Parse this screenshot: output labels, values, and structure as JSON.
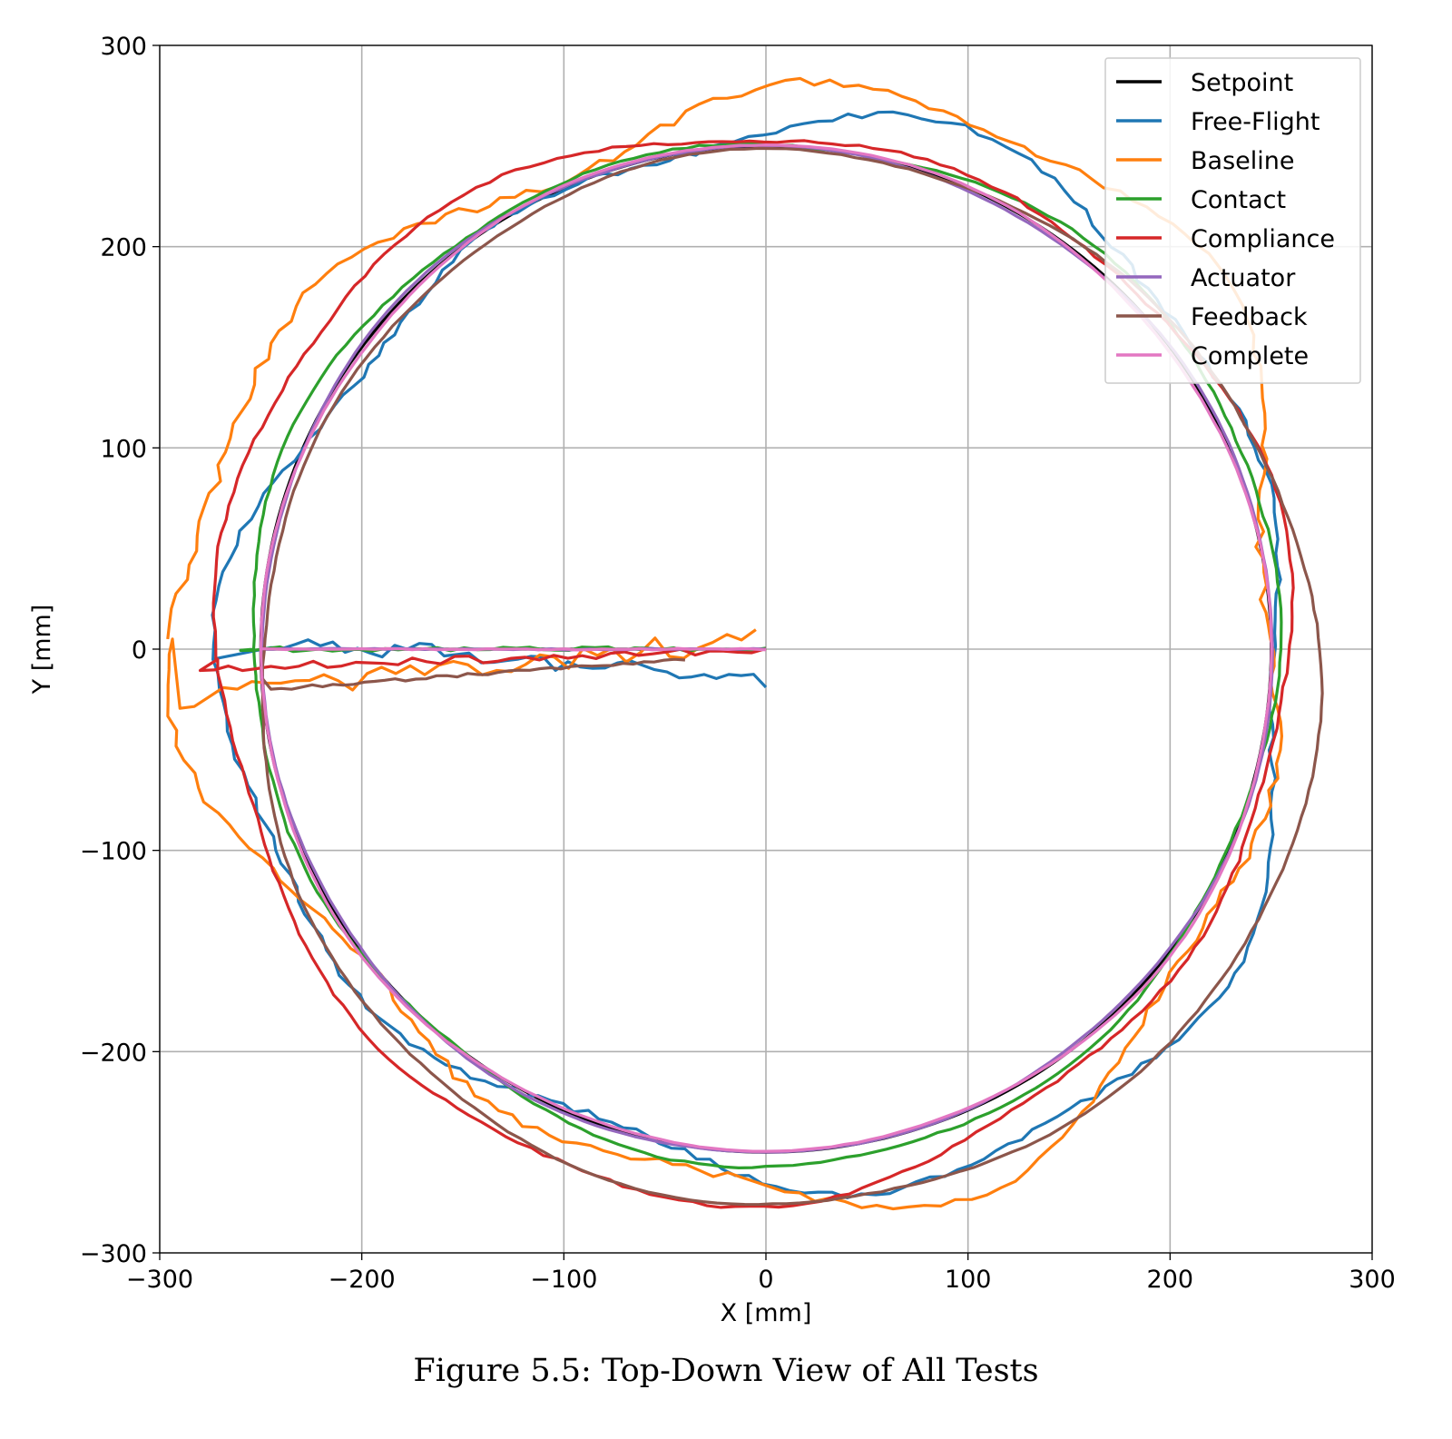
{
  "caption": "Figure 5.5: Top-Down View of All Tests",
  "chart_data": {
    "type": "line",
    "xlabel": "X [mm]",
    "ylabel": "Y [mm]",
    "xlim": [
      -300,
      300
    ],
    "ylim": [
      -300,
      300
    ],
    "xticks": [
      -300,
      -200,
      -100,
      0,
      100,
      200,
      300
    ],
    "yticks": [
      -300,
      -200,
      -100,
      0,
      100,
      200,
      300
    ],
    "xtick_labels": [
      "−300",
      "−200",
      "−100",
      "0",
      "100",
      "200",
      "300"
    ],
    "ytick_labels": [
      "−300",
      "−200",
      "−100",
      "0",
      "100",
      "200",
      "300"
    ],
    "grid": true,
    "legend_position": "top-right",
    "aspect": "equal",
    "series": [
      {
        "name": "Setpoint",
        "color": "#000000",
        "center": [
          0,
          0
        ],
        "radius": 250,
        "approach_start": [
          0,
          0
        ],
        "approach_end": [
          -250,
          0
        ],
        "offset": [
          0,
          0
        ],
        "wobble": 0
      },
      {
        "name": "Free-Flight",
        "color": "#1f77b4",
        "center": [
          5,
          -5
        ],
        "radius": 262,
        "approach_start": [
          0,
          -15
        ],
        "approach_end": [
          -245,
          5
        ],
        "offset": [
          4,
          -6
        ],
        "wobble": 22
      },
      {
        "name": "Baseline",
        "color": "#ff7f0e",
        "center": [
          -5,
          5
        ],
        "radius": 272,
        "approach_start": [
          -5,
          5
        ],
        "approach_end": [
          -290,
          -25
        ],
        "offset": [
          -5,
          5
        ],
        "wobble": 30
      },
      {
        "name": "Contact",
        "color": "#2ca02c",
        "center": [
          0,
          0
        ],
        "radius": 254,
        "approach_start": [
          0,
          0
        ],
        "approach_end": [
          -260,
          0
        ],
        "offset": [
          0,
          0
        ],
        "wobble": 6
      },
      {
        "name": "Compliance",
        "color": "#d62728",
        "center": [
          -8,
          -5
        ],
        "radius": 265,
        "approach_start": [
          0,
          0
        ],
        "approach_end": [
          -280,
          -10
        ],
        "offset": [
          -8,
          -5
        ],
        "wobble": 10
      },
      {
        "name": "Actuator",
        "color": "#9467bd",
        "center": [
          0,
          0
        ],
        "radius": 250,
        "approach_start": [
          0,
          0
        ],
        "approach_end": [
          -250,
          0
        ],
        "offset": [
          0,
          0
        ],
        "wobble": 2
      },
      {
        "name": "Feedback",
        "color": "#8c564b",
        "center": [
          10,
          -15
        ],
        "radius": 262,
        "approach_start": [
          -40,
          -5
        ],
        "approach_end": [
          -245,
          -20
        ],
        "offset": [
          10,
          -15
        ],
        "wobble": 4
      },
      {
        "name": "Complete",
        "color": "#e377c2",
        "center": [
          0,
          0
        ],
        "radius": 250,
        "approach_start": [
          0,
          0
        ],
        "approach_end": [
          -250,
          0
        ],
        "offset": [
          0,
          0
        ],
        "wobble": 2
      }
    ]
  }
}
